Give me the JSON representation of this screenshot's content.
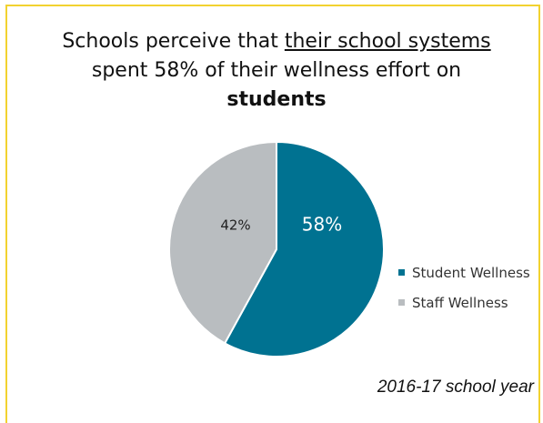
{
  "title": {
    "part1": "Schools perceive that ",
    "underline": "their school systems",
    "part2": "spent 58% of their wellness effort on",
    "bold": "students"
  },
  "footnote": "2016-17 school year",
  "colors": {
    "student": "#007291",
    "staff": "#b9bdc0",
    "border": "#f2d230"
  },
  "chart_data": {
    "type": "pie",
    "title": "Schools perceive that their school systems spent 58% of their wellness effort on students",
    "legend_position": "right",
    "slices": [
      {
        "label": "Student Wellness",
        "value": 58,
        "display": "58%"
      },
      {
        "label": "Staff Wellness",
        "value": 42,
        "display": "42%"
      }
    ]
  }
}
